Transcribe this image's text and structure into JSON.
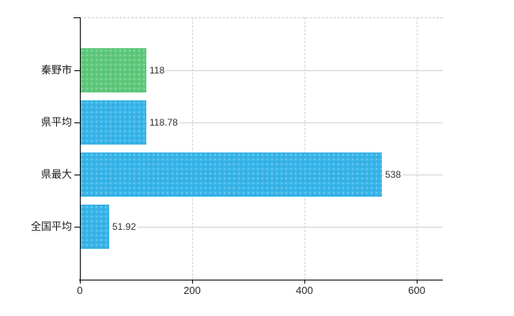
{
  "chart_data": {
    "type": "bar",
    "orientation": "horizontal",
    "title": "",
    "xlabel": "",
    "ylabel": "",
    "categories": [
      "秦野市",
      "県平均",
      "県最大",
      "全国平均"
    ],
    "values": [
      118,
      118.78,
      538,
      51.92
    ],
    "value_labels": [
      "118",
      "118.78",
      "538",
      "51.92"
    ],
    "bar_colors": [
      "#5fc97c",
      "#38b5e9",
      "#38b5e9",
      "#38b5e9"
    ],
    "xlim": [
      0,
      600
    ],
    "x_ticks": [
      0,
      200,
      400,
      600
    ],
    "x_tick_labels": [
      "0",
      "200",
      "400",
      "600"
    ],
    "grid": true,
    "legend": false
  },
  "colors": {
    "green_bar": "#5fc97c",
    "blue_bar": "#38b5e9",
    "axis": "#000000",
    "h_gridline": "#ccd6cc",
    "v_gridline": "#d2d2d2",
    "top_border": "#c9c9c9",
    "background": "#ffffff"
  }
}
